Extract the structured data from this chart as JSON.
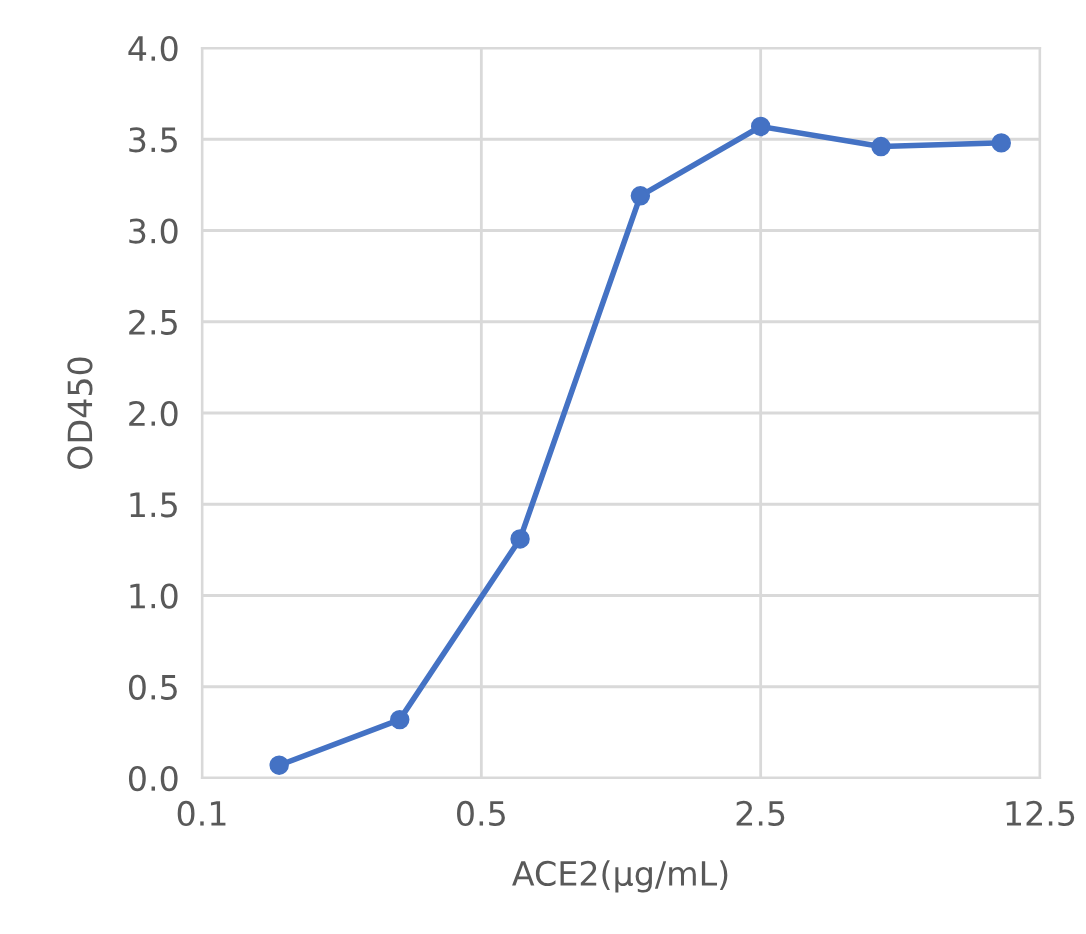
{
  "chart_data": {
    "type": "line",
    "xlabel": "ACE2(μg/mL)",
    "ylabel": "OD450",
    "x": [
      0.156,
      0.3125,
      0.625,
      1.25,
      2.5,
      5,
      10
    ],
    "series": [
      {
        "color": "#4472c4",
        "values": [
          0.07,
          0.32,
          1.31,
          3.19,
          3.57,
          3.46,
          3.48
        ]
      }
    ],
    "log": "x",
    "xlim": [
      0.1,
      12.5
    ],
    "xticks": [
      0.1,
      0.5,
      2.5,
      12.5
    ],
    "ylim": [
      0,
      4.0
    ],
    "yticks": [
      {
        "value": 0,
        "label": "0.0"
      },
      0.5,
      {
        "value": 1,
        "label": "1.0"
      },
      1.5,
      {
        "value": 2,
        "label": "2.0"
      },
      2.5,
      {
        "value": 3,
        "label": "3.0"
      },
      3.5,
      {
        "value": 4,
        "label": "4.0"
      }
    ],
    "grid": true,
    "marker": "circle",
    "line_style": "solid",
    "legend": false
  }
}
